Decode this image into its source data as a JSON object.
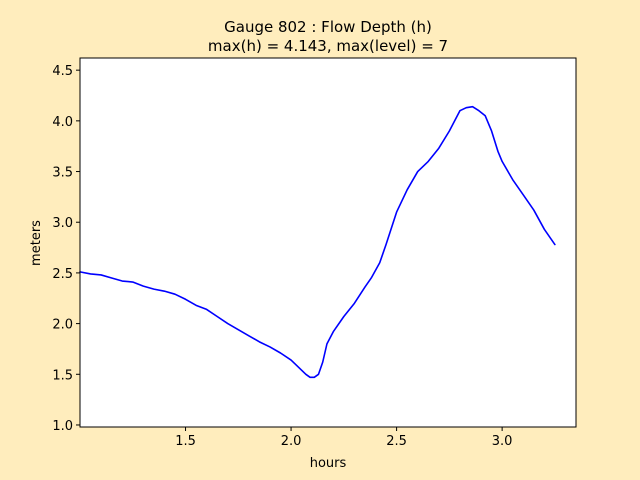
{
  "chart_data": {
    "type": "line",
    "title_line1": "Gauge 802 : Flow Depth (h)",
    "title_line2": "max(h) =   4.143,    max(level) = 7",
    "xlabel": "hours",
    "ylabel": "meters",
    "xlim": [
      1.0,
      3.35
    ],
    "ylim": [
      0.98,
      4.62
    ],
    "x_ticks": [
      1.5,
      2.0,
      2.5,
      3.0
    ],
    "x_tick_labels": [
      "1.5",
      "2.0",
      "2.5",
      "3.0"
    ],
    "y_ticks": [
      1.0,
      1.5,
      2.0,
      2.5,
      3.0,
      3.5,
      4.0,
      4.5
    ],
    "y_tick_labels": [
      "1.0",
      "1.5",
      "2.0",
      "2.5",
      "3.0",
      "3.5",
      "4.0",
      "4.5"
    ],
    "grid": false,
    "series": [
      {
        "color": "#0000ff",
        "x": [
          1.0,
          1.05,
          1.1,
          1.15,
          1.2,
          1.25,
          1.3,
          1.35,
          1.4,
          1.45,
          1.5,
          1.55,
          1.6,
          1.65,
          1.7,
          1.75,
          1.8,
          1.85,
          1.9,
          1.95,
          2.0,
          2.04,
          2.07,
          2.09,
          2.11,
          2.13,
          2.15,
          2.17,
          2.2,
          2.25,
          2.3,
          2.35,
          2.38,
          2.42,
          2.45,
          2.5,
          2.55,
          2.6,
          2.65,
          2.7,
          2.75,
          2.8,
          2.83,
          2.86,
          2.89,
          2.92,
          2.95,
          2.98,
          3.0,
          3.05,
          3.1,
          3.15,
          3.2,
          3.25
        ],
        "y": [
          2.51,
          2.49,
          2.48,
          2.45,
          2.42,
          2.41,
          2.37,
          2.34,
          2.32,
          2.29,
          2.24,
          2.18,
          2.14,
          2.07,
          2.0,
          1.94,
          1.88,
          1.82,
          1.77,
          1.71,
          1.64,
          1.56,
          1.5,
          1.47,
          1.47,
          1.5,
          1.62,
          1.8,
          1.92,
          2.07,
          2.2,
          2.36,
          2.45,
          2.6,
          2.78,
          3.1,
          3.32,
          3.5,
          3.6,
          3.73,
          3.9,
          4.1,
          4.13,
          4.14,
          4.1,
          4.05,
          3.9,
          3.7,
          3.6,
          3.42,
          3.27,
          3.12,
          2.93,
          2.78
        ]
      }
    ]
  }
}
